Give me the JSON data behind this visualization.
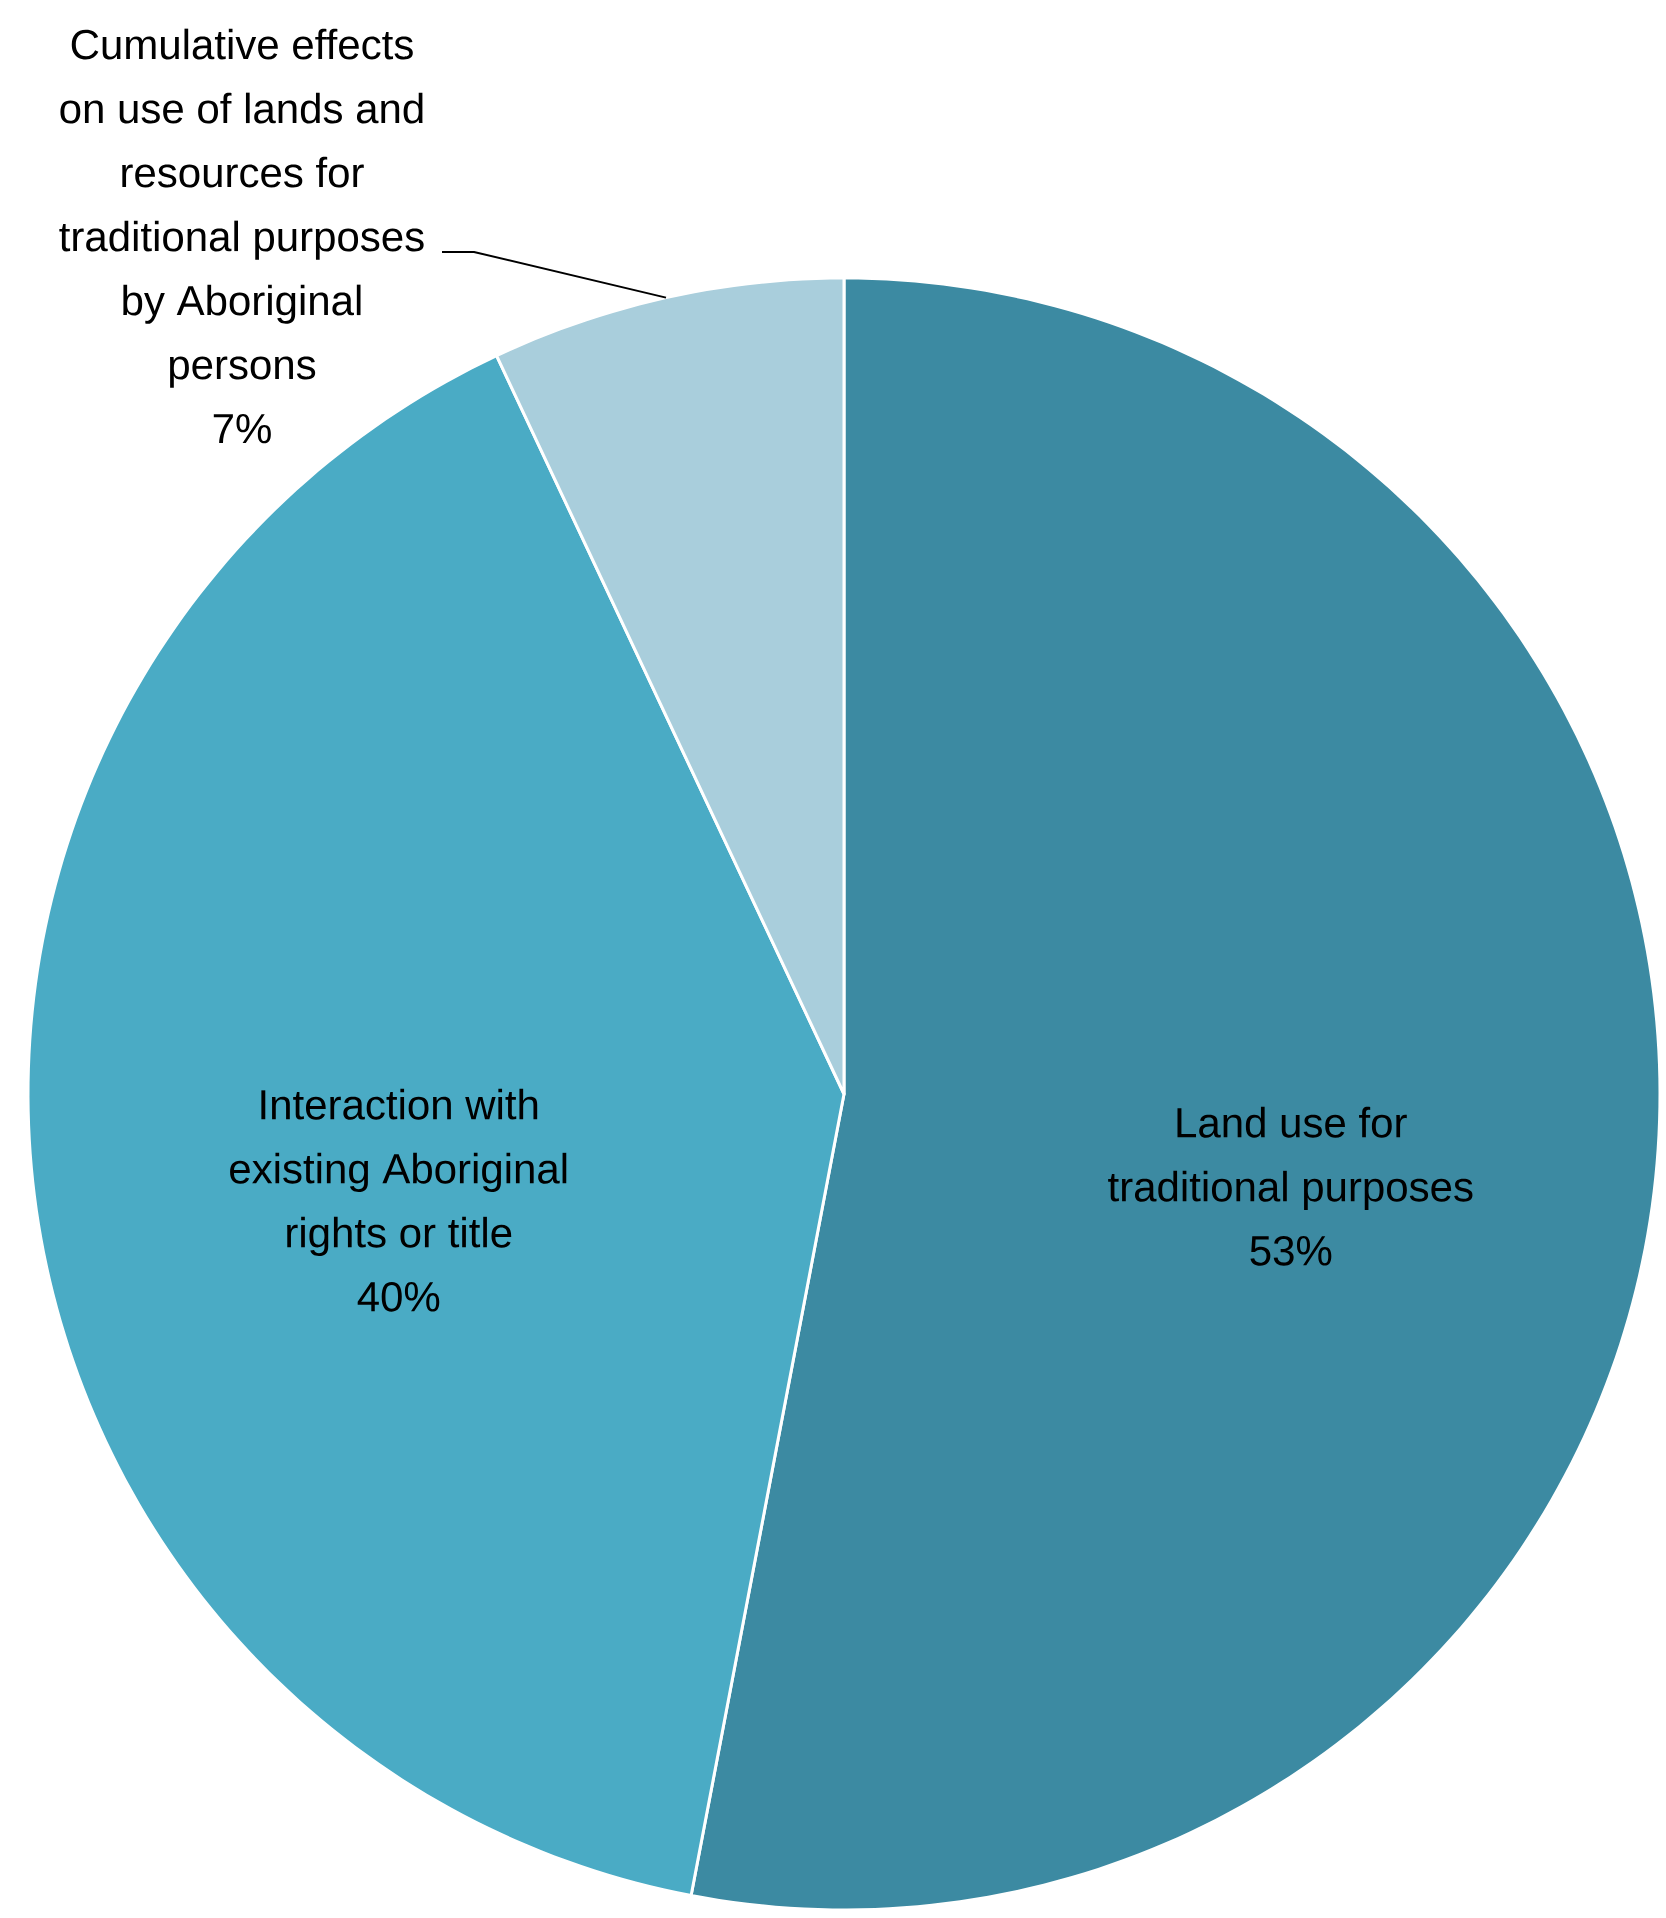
{
  "chart_data": {
    "type": "pie",
    "categories": [
      "Land use for traditional purposes",
      "Interaction with existing Aboriginal rights or title",
      "Cumulative effects on use of lands and resources for traditional purposes by Aboriginal persons"
    ],
    "values": [
      53,
      40,
      7
    ],
    "colors": [
      "#3c8aa2",
      "#4aabc5",
      "#a9cedc"
    ],
    "value_labels": [
      "53%",
      "40%",
      "7%"
    ]
  }
}
